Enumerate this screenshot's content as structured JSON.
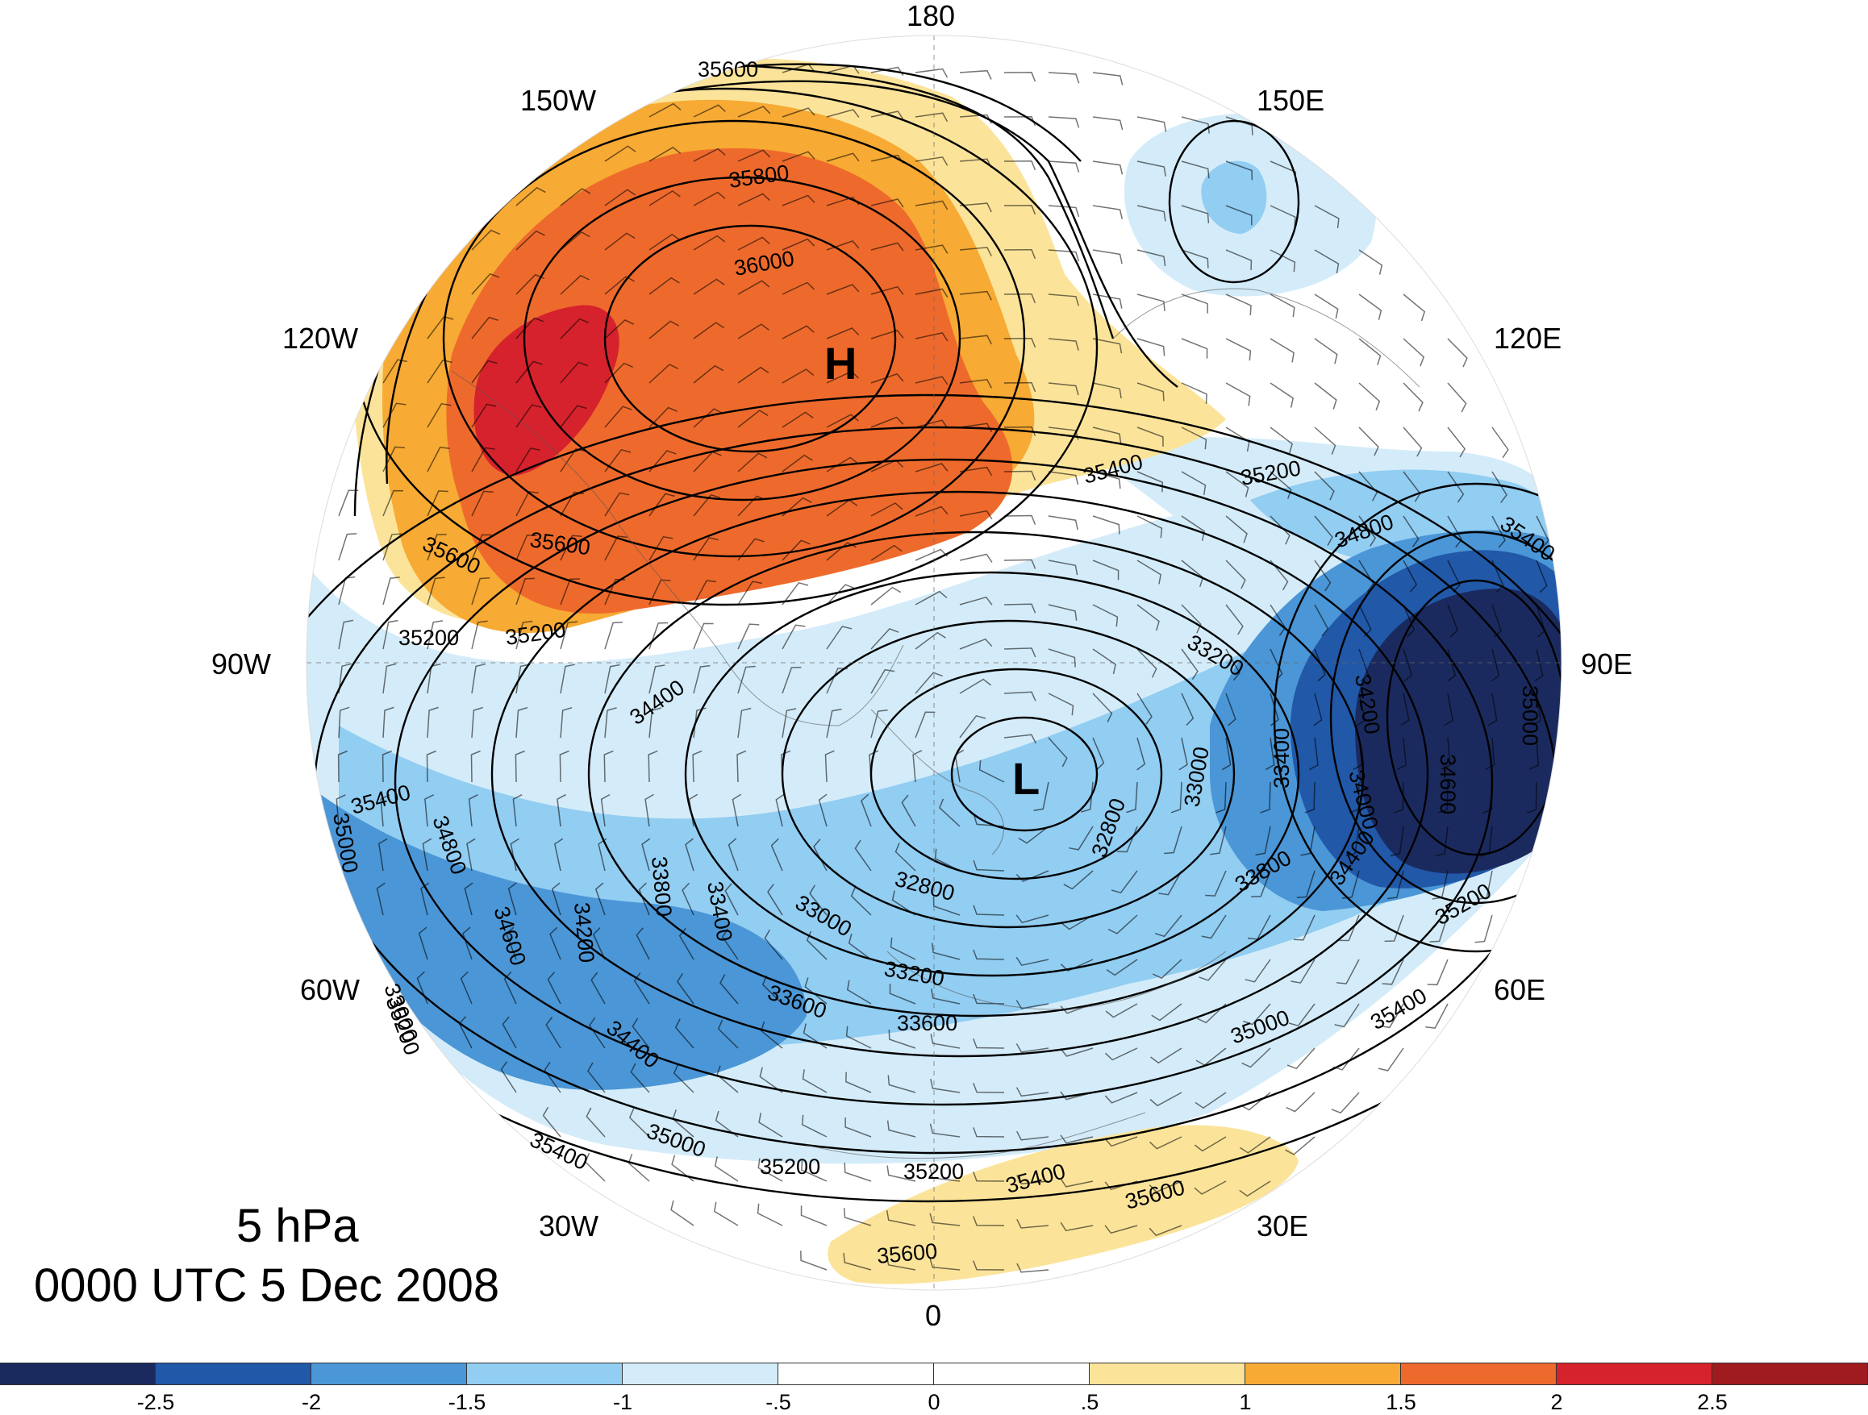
{
  "annotation": {
    "level": "5 hPa",
    "datetime": "0000 UTC 5 Dec 2008"
  },
  "meridian_labels": {
    "m180": "180",
    "m150w": "150W",
    "m150e": "150E",
    "m120w": "120W",
    "m120e": "120E",
    "m90w": "90W",
    "m90e": "90E",
    "m60w": "60W",
    "m60e": "60E",
    "m30w": "30W",
    "m30e": "30E",
    "m0": "0"
  },
  "centers": {
    "high": "H",
    "low": "L"
  },
  "contour_labels": [
    "35600",
    "35800",
    "36000",
    "35600",
    "35400",
    "35200",
    "35400",
    "35600",
    "35200",
    "35200",
    "34800",
    "35400",
    "34400",
    "34200",
    "35000",
    "34600",
    "34000",
    "33200",
    "33000",
    "33400",
    "33800",
    "34800",
    "35000",
    "34200",
    "34600",
    "34400",
    "33800",
    "33400",
    "33000",
    "32800",
    "32800",
    "33000",
    "33200",
    "33600",
    "33600",
    "34400",
    "35200",
    "35000",
    "35400",
    "35200",
    "35200",
    "35400",
    "35600",
    "35600",
    "35000",
    "35400",
    "35200"
  ],
  "colorbar": {
    "colors": [
      "#1b2a5e",
      "#2158a8",
      "#4b96d6",
      "#92cdf2",
      "#d4ecf9",
      "#ffffff",
      "#ffffff",
      "#fbe49a",
      "#f7aa34",
      "#ee6a2c",
      "#d6222c",
      "#a01b1f"
    ],
    "ticks": [
      "-2.5",
      "-2",
      "-1.5",
      "-1",
      "-.5",
      "0",
      ".5",
      "1",
      "1.5",
      "2",
      "2.5"
    ]
  },
  "shading_colors": {
    "pos1": "#fbe49a",
    "pos2": "#f7aa34",
    "pos3": "#ee6a2c",
    "pos4": "#d6222c",
    "neg1": "#d4ecf9",
    "neg2": "#92cdf2",
    "neg3": "#4b96d6",
    "neg4": "#2158a8",
    "neg5": "#1b2a5e"
  }
}
